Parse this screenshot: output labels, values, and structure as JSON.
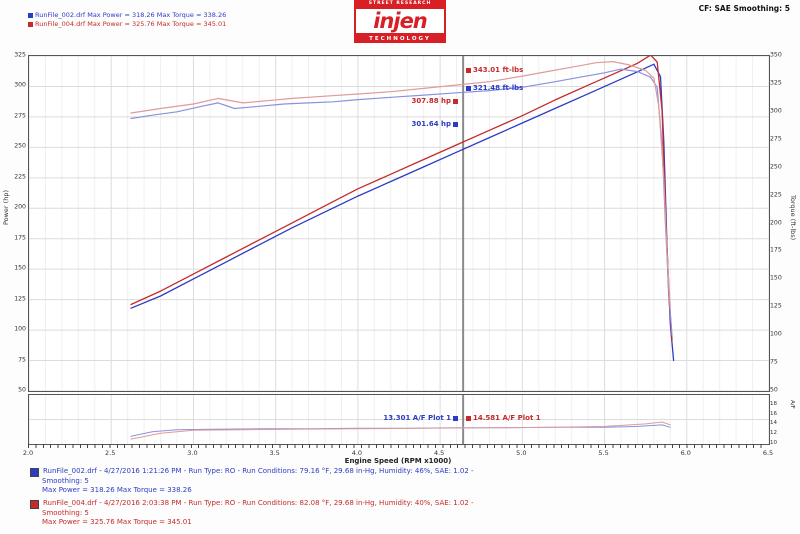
{
  "header": {
    "summary_lines": [
      {
        "text": "RunFile_002.drf  Max Power = 318.26     Max Torque = 338.26"
      },
      {
        "text": "RunFile_004.drf  Max Power = 325.76     Max Torque = 345.01"
      }
    ],
    "logo": {
      "top": "STREET RESEARCH",
      "name": "injen",
      "bottom": "TECHNOLOGY"
    },
    "settings": "CF: SAE   Smoothing: 5"
  },
  "chart_data": {
    "type": "line",
    "xlabel": "Engine Speed (RPM x1000)",
    "xlim": [
      2.0,
      6.5
    ],
    "x_ticks": [
      "2.0",
      "2.5",
      "3.0",
      "3.5",
      "4.0",
      "4.5",
      "5.0",
      "5.5",
      "6.0",
      "6.5"
    ],
    "cursor_x": 4.64,
    "grid": "on",
    "power_axis": {
      "label": "Power (hp)",
      "lim": [
        50,
        325
      ],
      "ticks": [
        "325",
        "300",
        "275",
        "250",
        "225",
        "200",
        "175",
        "150",
        "125",
        "100",
        "75",
        "50"
      ]
    },
    "torque_axis": {
      "label": "Torque (ft-lbs)",
      "lim": [
        50,
        350
      ],
      "ticks": [
        "350",
        "325",
        "300",
        "275",
        "250",
        "225",
        "200",
        "175",
        "150",
        "125",
        "100",
        "75",
        "50"
      ]
    },
    "afr_axis": {
      "label": "A/F",
      "lim": [
        10,
        20
      ],
      "ticks": [
        "18",
        "16",
        "14",
        "12",
        "10"
      ]
    },
    "series": [
      {
        "name": "Power - RunFile_002",
        "axis": "power",
        "color": "#2b3cc4",
        "width": 1.3,
        "points": [
          [
            2.62,
            118
          ],
          [
            2.8,
            128
          ],
          [
            3.0,
            142
          ],
          [
            3.2,
            156
          ],
          [
            3.4,
            170
          ],
          [
            3.6,
            184
          ],
          [
            3.8,
            197
          ],
          [
            4.0,
            210
          ],
          [
            4.2,
            222
          ],
          [
            4.4,
            234
          ],
          [
            4.6,
            246
          ],
          [
            4.8,
            258
          ],
          [
            5.0,
            270
          ],
          [
            5.2,
            282
          ],
          [
            5.4,
            294
          ],
          [
            5.55,
            303
          ],
          [
            5.7,
            312
          ],
          [
            5.8,
            318.26
          ],
          [
            5.84,
            308
          ],
          [
            5.86,
            255
          ],
          [
            5.88,
            170
          ],
          [
            5.9,
            105
          ],
          [
            5.92,
            75
          ]
        ]
      },
      {
        "name": "Power - RunFile_004",
        "axis": "power",
        "color": "#c42b2b",
        "width": 1.3,
        "points": [
          [
            2.62,
            121
          ],
          [
            2.8,
            132
          ],
          [
            3.0,
            146
          ],
          [
            3.2,
            160
          ],
          [
            3.4,
            174
          ],
          [
            3.6,
            188
          ],
          [
            3.8,
            202
          ],
          [
            4.0,
            216
          ],
          [
            4.2,
            228
          ],
          [
            4.4,
            240
          ],
          [
            4.6,
            252
          ],
          [
            4.8,
            264
          ],
          [
            5.0,
            276
          ],
          [
            5.2,
            289
          ],
          [
            5.4,
            301
          ],
          [
            5.55,
            310
          ],
          [
            5.7,
            319
          ],
          [
            5.78,
            325.76
          ],
          [
            5.82,
            320
          ],
          [
            5.85,
            280
          ],
          [
            5.87,
            200
          ],
          [
            5.89,
            130
          ],
          [
            5.91,
            92
          ]
        ]
      },
      {
        "name": "Torque - RunFile_002",
        "axis": "torque",
        "color": "#8a92e0",
        "width": 1.2,
        "points": [
          [
            2.62,
            294
          ],
          [
            2.75,
            297
          ],
          [
            2.9,
            300
          ],
          [
            3.05,
            305
          ],
          [
            3.15,
            308
          ],
          [
            3.25,
            303
          ],
          [
            3.4,
            305
          ],
          [
            3.55,
            307
          ],
          [
            3.7,
            308
          ],
          [
            3.85,
            309
          ],
          [
            4.0,
            311
          ],
          [
            4.2,
            313
          ],
          [
            4.4,
            315
          ],
          [
            4.6,
            317
          ],
          [
            4.8,
            319
          ],
          [
            5.0,
            322
          ],
          [
            5.2,
            327
          ],
          [
            5.35,
            331
          ],
          [
            5.5,
            335
          ],
          [
            5.6,
            338.26
          ],
          [
            5.7,
            336
          ],
          [
            5.78,
            331
          ],
          [
            5.82,
            322
          ],
          [
            5.85,
            270
          ],
          [
            5.87,
            200
          ],
          [
            5.89,
            140
          ],
          [
            5.91,
            100
          ]
        ]
      },
      {
        "name": "Torque - RunFile_004",
        "axis": "torque",
        "color": "#e09a9a",
        "width": 1.2,
        "points": [
          [
            2.62,
            299
          ],
          [
            2.8,
            303
          ],
          [
            3.0,
            307
          ],
          [
            3.15,
            312
          ],
          [
            3.3,
            308
          ],
          [
            3.45,
            310
          ],
          [
            3.6,
            312
          ],
          [
            3.8,
            314
          ],
          [
            4.0,
            316
          ],
          [
            4.2,
            318
          ],
          [
            4.4,
            321
          ],
          [
            4.6,
            324
          ],
          [
            4.8,
            327
          ],
          [
            5.0,
            332
          ],
          [
            5.15,
            336
          ],
          [
            5.3,
            340
          ],
          [
            5.45,
            344
          ],
          [
            5.55,
            345.01
          ],
          [
            5.65,
            342
          ],
          [
            5.75,
            337
          ],
          [
            5.8,
            330
          ],
          [
            5.83,
            305
          ],
          [
            5.86,
            240
          ],
          [
            5.88,
            175
          ],
          [
            5.9,
            125
          ]
        ]
      }
    ],
    "afr_series": [
      {
        "name": "A/F - RunFile_002",
        "color": "#8a92e0",
        "width": 1,
        "points": [
          [
            2.62,
            11.6
          ],
          [
            2.75,
            12.5
          ],
          [
            2.9,
            12.9
          ],
          [
            3.1,
            13.0
          ],
          [
            3.4,
            13.1
          ],
          [
            3.7,
            13.1
          ],
          [
            4.0,
            13.2
          ],
          [
            4.3,
            13.2
          ],
          [
            4.6,
            13.3
          ],
          [
            4.9,
            13.3
          ],
          [
            5.2,
            13.4
          ],
          [
            5.5,
            13.4
          ],
          [
            5.7,
            13.6
          ],
          [
            5.85,
            13.9
          ],
          [
            5.9,
            13.4
          ]
        ]
      },
      {
        "name": "A/F - RunFile_004",
        "color": "#e09a9a",
        "width": 1,
        "points": [
          [
            2.62,
            11.0
          ],
          [
            2.8,
            12.2
          ],
          [
            3.0,
            12.8
          ],
          [
            3.3,
            12.9
          ],
          [
            3.6,
            13.0
          ],
          [
            4.0,
            13.1
          ],
          [
            4.4,
            13.2
          ],
          [
            4.8,
            13.3
          ],
          [
            5.2,
            13.4
          ],
          [
            5.5,
            13.6
          ],
          [
            5.75,
            14.1
          ],
          [
            5.85,
            14.5
          ],
          [
            5.9,
            13.9
          ]
        ]
      }
    ]
  },
  "cursor_labels": {
    "power_red": "307.88 hp",
    "power_blue": "301.64 hp",
    "torque_red": "343.01 ft-lbs",
    "torque_blue": "321.48 ft-lbs",
    "afr_blue": "13.301 A/F Plot 1",
    "afr_red": "14.581 A/F Plot 1"
  },
  "footer": {
    "runs": [
      {
        "line1": "RunFile_002.drf - 4/27/2016 1:21:26 PM - Run Type: RO - Run Conditions: 79.16 °F, 29.68 in-Hg, Humidity: 46%, SAE: 1.02 -",
        "line2": "Smoothing: 5",
        "line3": "Max Power = 318.26   Max Torque = 338.26"
      },
      {
        "line1": "RunFile_004.drf - 4/27/2016 2:03:38 PM - Run Type: RO - Run Conditions: 82.08 °F, 29.68 in-Hg, Humidity: 40%, SAE: 1.02 -",
        "line2": "Smoothing: 5",
        "line3": "Max Power = 325.76   Max Torque = 345.01"
      }
    ]
  },
  "colors": {
    "run_blue": "#2b3cc4",
    "run_red": "#c42b2b",
    "torque_blue": "#8a92e0",
    "torque_red": "#e09a9a",
    "injen_red": "#d81f26",
    "grid_major": "#dcdcdc",
    "grid_minor": "#f0f0f0",
    "cursor": "#8a8a8a"
  }
}
